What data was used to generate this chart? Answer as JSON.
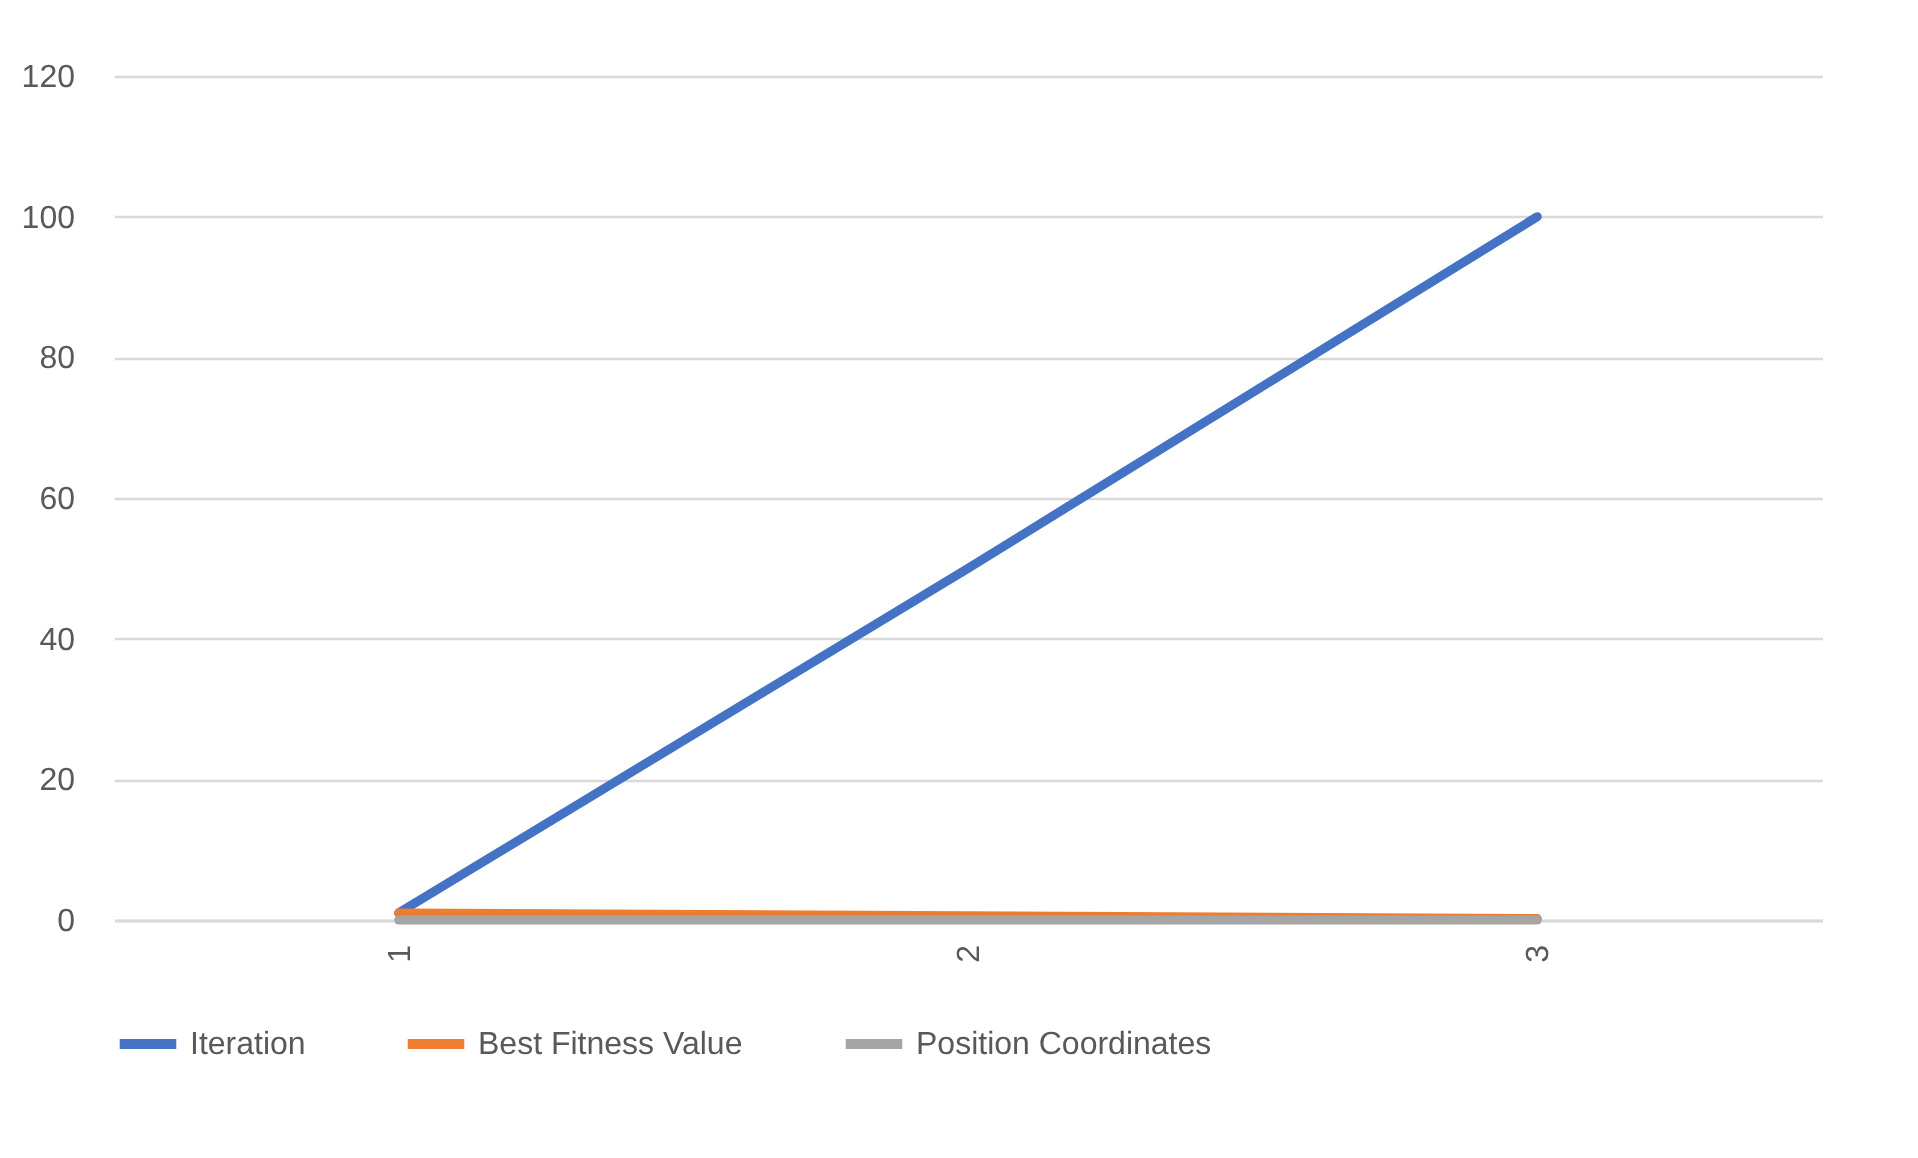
{
  "chart_data": {
    "type": "line",
    "categories": [
      "1",
      "2",
      "3"
    ],
    "series": [
      {
        "name": "Iteration",
        "color": "#4472c4",
        "values": [
          1,
          50,
          100
        ]
      },
      {
        "name": "Best Fitness Value",
        "color": "#ed7d31",
        "values": [
          1,
          0.6,
          0.2
        ]
      },
      {
        "name": "Position Coordinates",
        "color": "#a5a5a5",
        "values": [
          0,
          0,
          0
        ]
      }
    ],
    "ylim": [
      0,
      120
    ],
    "yticks": [
      0,
      20,
      40,
      60,
      80,
      100,
      120
    ],
    "grid": "y",
    "legend": "bottom",
    "marker": "none",
    "line_style": "solid"
  }
}
